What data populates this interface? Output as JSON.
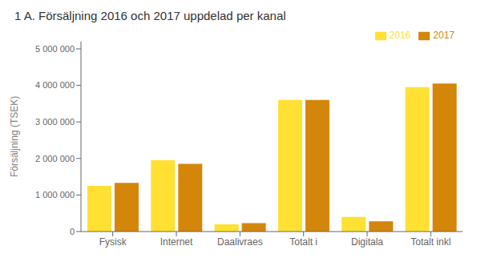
{
  "chart_data": {
    "type": "bar",
    "title": "1 A. Försäljning 2016 och 2017 uppdelad per kanal",
    "ylabel": "Försäljning (TSEK)",
    "categories": [
      "Fysisk",
      "Internet",
      "Daalivraes",
      "Totalt i",
      "Digitala",
      "Totalt inkl"
    ],
    "series": [
      {
        "name": "2016",
        "color": "#FFE033",
        "values": [
          1250000,
          1950000,
          200000,
          3600000,
          400000,
          3950000
        ]
      },
      {
        "name": "2017",
        "color": "#D4860A",
        "values": [
          1330000,
          1850000,
          230000,
          3600000,
          280000,
          4050000
        ]
      }
    ],
    "ylim": [
      0,
      5200000
    ],
    "yticks": [
      0,
      {
        "value": 1000000,
        "label": "1 000 000"
      },
      {
        "value": 2000000,
        "label": "2 000 000"
      },
      {
        "value": 3000000,
        "label": "3 000 000"
      },
      {
        "value": 4000000,
        "label": "4 000 000"
      },
      {
        "value": 5000000,
        "label": "5 000 000"
      }
    ],
    "grid": false,
    "legend": "upper right"
  }
}
